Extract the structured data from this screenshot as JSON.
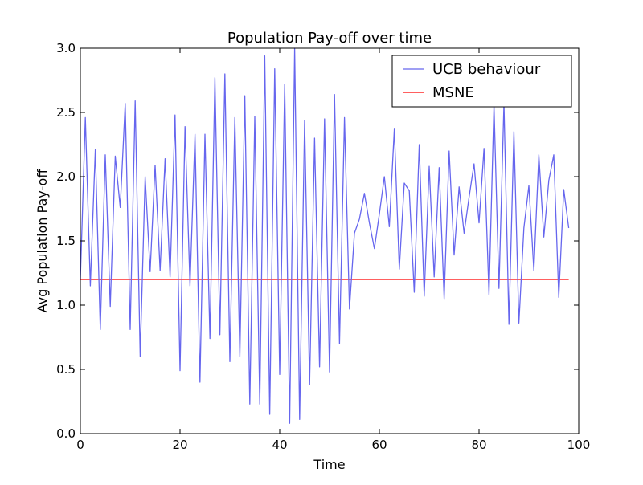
{
  "chart_data": {
    "type": "line",
    "title": "Population Pay-off over time",
    "xlabel": "Time",
    "ylabel": "Avg Population Pay-off",
    "xlim": [
      0,
      100
    ],
    "ylim": [
      0.0,
      3.0
    ],
    "xticks": [
      "0",
      "20",
      "40",
      "60",
      "80",
      "100"
    ],
    "yticks": [
      "0.0",
      "0.5",
      "1.0",
      "1.5",
      "2.0",
      "2.5",
      "3.0"
    ],
    "grid": false,
    "legend_position": "top-right",
    "series": [
      {
        "name": "UCB behaviour",
        "color": "#6666ee",
        "x": [
          0,
          1,
          2,
          3,
          4,
          5,
          6,
          7,
          8,
          9,
          10,
          11,
          12,
          13,
          14,
          15,
          16,
          17,
          18,
          19,
          20,
          21,
          22,
          23,
          24,
          25,
          26,
          27,
          28,
          29,
          30,
          31,
          32,
          33,
          34,
          35,
          36,
          37,
          38,
          39,
          40,
          41,
          42,
          43,
          44,
          45,
          46,
          47,
          48,
          49,
          50,
          51,
          52,
          53,
          54,
          55,
          56,
          57,
          58,
          59,
          60,
          61,
          62,
          63,
          64,
          65,
          66,
          67,
          68,
          69,
          70,
          71,
          72,
          73,
          74,
          75,
          76,
          77,
          78,
          79,
          80,
          81,
          82,
          83,
          84,
          85,
          86,
          87,
          88,
          89,
          90,
          91,
          92,
          93,
          94,
          95,
          96,
          97,
          98
        ],
        "y": [
          1.2,
          2.46,
          1.15,
          2.21,
          0.81,
          2.17,
          0.99,
          2.16,
          1.76,
          2.57,
          0.81,
          2.59,
          0.6,
          2.0,
          1.26,
          2.09,
          1.27,
          2.14,
          1.22,
          2.48,
          0.49,
          2.39,
          1.15,
          2.33,
          0.4,
          2.33,
          0.74,
          2.77,
          0.77,
          2.8,
          0.56,
          2.46,
          0.6,
          2.63,
          0.23,
          2.47,
          0.23,
          2.94,
          0.15,
          2.84,
          0.46,
          2.72,
          0.08,
          3.0,
          0.11,
          2.44,
          0.38,
          2.3,
          0.52,
          2.45,
          0.48,
          2.64,
          0.7,
          2.46,
          0.97,
          1.56,
          1.67,
          1.87,
          1.64,
          1.44,
          1.71,
          2.0,
          1.61,
          2.37,
          1.28,
          1.95,
          1.89,
          1.1,
          2.25,
          1.07,
          2.08,
          1.22,
          2.07,
          1.05,
          2.2,
          1.39,
          1.92,
          1.56,
          1.84,
          2.1,
          1.64,
          2.22,
          1.08,
          2.56,
          1.13,
          2.57,
          0.85,
          2.35,
          0.86,
          1.6,
          1.93,
          1.27,
          2.17,
          1.53,
          1.97,
          2.17,
          1.06,
          1.9,
          1.6
        ]
      },
      {
        "name": "MSNE",
        "color": "#ff0000",
        "x": [
          0,
          98
        ],
        "y": [
          1.2,
          1.2
        ]
      }
    ]
  }
}
